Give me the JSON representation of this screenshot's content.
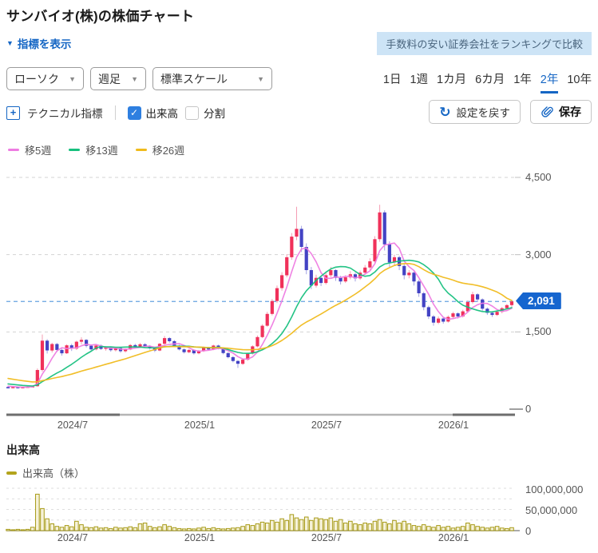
{
  "page": {
    "title": "サンバイオ(株)の株価チャート"
  },
  "toolbar": {
    "indicator_toggle": "指標を表示",
    "promo_link": "手数料の安い証券会社をランキングで比較",
    "chart_type": "ローソク",
    "interval": "週足",
    "scale": "標準スケール",
    "periods": [
      "1日",
      "1週",
      "1カ月",
      "6カ月",
      "1年",
      "2年",
      "10年"
    ],
    "active_period": "2年",
    "technical": "テクニカル指標",
    "volume_checkbox": "出来高",
    "split_checkbox": "分割",
    "check_glyph": "✓",
    "reset_button": "設定を戻す",
    "save_button": "保存",
    "caret_glyph": "▼",
    "plus_glyph": "+",
    "refresh_glyph": "↻"
  },
  "legend": {
    "ma": [
      {
        "label": "移5週",
        "color": "#ee7ce2"
      },
      {
        "label": "移13週",
        "color": "#17c07e"
      },
      {
        "label": "移26週",
        "color": "#f0bb1c"
      }
    ]
  },
  "colors": {
    "accent_blue": "#1566c4",
    "up_body": "#f0315a",
    "up_wick": "#f59cb2",
    "down_body": "#4343c4",
    "down_wick": "#a3a3e4",
    "price_line": "#66a3e0",
    "price_badge_bg": "#1565cf",
    "grid": "#d3d3d3",
    "vol_fill": "#f6f2da",
    "vol_stroke": "#a79a16"
  },
  "price_axis_labels": [
    "4,500",
    "3,000",
    "1,500",
    "0"
  ],
  "current_price_label": "2,091",
  "volume_section": {
    "heading": "出来高",
    "legend": "出来高（株）",
    "legend_color": "#b3a41c",
    "axis_labels": [
      "100,000,000",
      "50,000,000",
      "0"
    ]
  },
  "chart_data": {
    "type": "candlestick+volume",
    "title": "サンバイオ(株) 週足 2年",
    "x_labels": [
      "2024/7",
      "2025/1",
      "2025/7",
      "2026/1"
    ],
    "x_tick_weeks": [
      13,
      39,
      65,
      91
    ],
    "ylim": [
      0,
      4690
    ],
    "y_gridlines": [
      4500,
      3000,
      1500
    ],
    "current_price": 2091,
    "ma_periods": [
      5,
      13,
      26
    ],
    "ma_seed_closes": [
      840,
      820,
      800,
      780,
      760,
      740,
      720,
      700,
      680,
      660,
      640,
      620,
      600,
      585,
      570,
      555,
      540,
      525,
      510,
      495,
      485,
      475,
      465,
      455,
      445,
      435
    ],
    "ohlc": [
      [
        430,
        445,
        405,
        425
      ],
      [
        425,
        440,
        412,
        432
      ],
      [
        432,
        438,
        402,
        418
      ],
      [
        418,
        436,
        408,
        430
      ],
      [
        430,
        448,
        420,
        438
      ],
      [
        438,
        455,
        425,
        445
      ],
      [
        445,
        790,
        438,
        760
      ],
      [
        760,
        1450,
        730,
        1330
      ],
      [
        1330,
        1360,
        1080,
        1140
      ],
      [
        1140,
        1290,
        1100,
        1265
      ],
      [
        1265,
        1285,
        1110,
        1150
      ],
      [
        1150,
        1175,
        1040,
        1085
      ],
      [
        1085,
        1260,
        1070,
        1240
      ],
      [
        1240,
        1270,
        1130,
        1175
      ],
      [
        1175,
        1330,
        1150,
        1310
      ],
      [
        1310,
        1395,
        1260,
        1345
      ],
      [
        1345,
        1360,
        1200,
        1230
      ],
      [
        1230,
        1255,
        1125,
        1160
      ],
      [
        1160,
        1250,
        1140,
        1235
      ],
      [
        1235,
        1255,
        1150,
        1170
      ],
      [
        1170,
        1225,
        1135,
        1200
      ],
      [
        1200,
        1215,
        1115,
        1145
      ],
      [
        1145,
        1205,
        1120,
        1185
      ],
      [
        1185,
        1200,
        1095,
        1125
      ],
      [
        1125,
        1180,
        1100,
        1160
      ],
      [
        1160,
        1265,
        1145,
        1245
      ],
      [
        1245,
        1270,
        1180,
        1210
      ],
      [
        1210,
        1285,
        1190,
        1260
      ],
      [
        1260,
        1280,
        1195,
        1225
      ],
      [
        1225,
        1245,
        1155,
        1180
      ],
      [
        1180,
        1200,
        1110,
        1140
      ],
      [
        1140,
        1285,
        1125,
        1270
      ],
      [
        1270,
        1420,
        1255,
        1380
      ],
      [
        1380,
        1400,
        1290,
        1320
      ],
      [
        1320,
        1340,
        1205,
        1230
      ],
      [
        1230,
        1250,
        1140,
        1160
      ],
      [
        1160,
        1180,
        1080,
        1105
      ],
      [
        1105,
        1165,
        1085,
        1150
      ],
      [
        1150,
        1160,
        1060,
        1085
      ],
      [
        1085,
        1150,
        1065,
        1130
      ],
      [
        1130,
        1215,
        1110,
        1195
      ],
      [
        1195,
        1210,
        1135,
        1160
      ],
      [
        1160,
        1250,
        1145,
        1235
      ],
      [
        1235,
        1250,
        1160,
        1180
      ],
      [
        1180,
        1195,
        1065,
        1090
      ],
      [
        1090,
        1105,
        985,
        1010
      ],
      [
        1010,
        1030,
        910,
        935
      ],
      [
        935,
        950,
        800,
        880
      ],
      [
        880,
        985,
        860,
        960
      ],
      [
        960,
        1095,
        940,
        1080
      ],
      [
        1080,
        1240,
        1060,
        1220
      ],
      [
        1220,
        1430,
        1200,
        1400
      ],
      [
        1400,
        1650,
        1380,
        1620
      ],
      [
        1620,
        1890,
        1600,
        1850
      ],
      [
        1850,
        2140,
        1820,
        2100
      ],
      [
        2100,
        2400,
        2060,
        2350
      ],
      [
        2350,
        2660,
        2300,
        2600
      ],
      [
        2600,
        3010,
        2560,
        2950
      ],
      [
        2950,
        3420,
        2900,
        3350
      ],
      [
        3350,
        3930,
        3280,
        3500
      ],
      [
        3500,
        3560,
        3050,
        3150
      ],
      [
        3150,
        3220,
        2620,
        2700
      ],
      [
        2700,
        2760,
        2330,
        2400
      ],
      [
        2400,
        2610,
        2360,
        2550
      ],
      [
        2550,
        2580,
        2390,
        2450
      ],
      [
        2450,
        2650,
        2420,
        2600
      ],
      [
        2600,
        2760,
        2560,
        2700
      ],
      [
        2700,
        2720,
        2490,
        2550
      ],
      [
        2550,
        2590,
        2420,
        2480
      ],
      [
        2480,
        2600,
        2450,
        2560
      ],
      [
        2560,
        2680,
        2520,
        2620
      ],
      [
        2620,
        2650,
        2480,
        2540
      ],
      [
        2540,
        2690,
        2510,
        2650
      ],
      [
        2650,
        2800,
        2610,
        2750
      ],
      [
        2750,
        2930,
        2700,
        2870
      ],
      [
        2870,
        3360,
        2840,
        3300
      ],
      [
        3300,
        3970,
        3250,
        3820
      ],
      [
        3820,
        3860,
        3080,
        3200
      ],
      [
        3200,
        3260,
        2760,
        2850
      ],
      [
        2850,
        3000,
        2790,
        2950
      ],
      [
        2950,
        2980,
        2700,
        2780
      ],
      [
        2780,
        2820,
        2520,
        2600
      ],
      [
        2600,
        2700,
        2540,
        2650
      ],
      [
        2650,
        2670,
        2400,
        2480
      ],
      [
        2480,
        2510,
        2180,
        2250
      ],
      [
        2250,
        2280,
        1920,
        1980
      ],
      [
        1980,
        2010,
        1750,
        1800
      ],
      [
        1800,
        1830,
        1620,
        1680
      ],
      [
        1680,
        1800,
        1650,
        1760
      ],
      [
        1760,
        1780,
        1660,
        1700
      ],
      [
        1700,
        1820,
        1680,
        1790
      ],
      [
        1790,
        1890,
        1760,
        1860
      ],
      [
        1860,
        1880,
        1760,
        1800
      ],
      [
        1800,
        1930,
        1780,
        1900
      ],
      [
        1900,
        2110,
        1880,
        2080
      ],
      [
        2080,
        2280,
        2050,
        2230
      ],
      [
        2230,
        2250,
        2080,
        2130
      ],
      [
        2130,
        2150,
        1910,
        1950
      ],
      [
        1950,
        1975,
        1830,
        1870
      ],
      [
        1870,
        1895,
        1790,
        1830
      ],
      [
        1830,
        1915,
        1810,
        1890
      ],
      [
        1890,
        1985,
        1860,
        1960
      ],
      [
        1960,
        2040,
        1930,
        2020
      ],
      [
        2020,
        2110,
        1985,
        2091
      ]
    ],
    "volumes_m": [
      3,
      2,
      3,
      2,
      3,
      8,
      86,
      52,
      28,
      16,
      10,
      8,
      12,
      9,
      22,
      14,
      8,
      7,
      9,
      6,
      7,
      5,
      8,
      6,
      7,
      9,
      7,
      16,
      18,
      10,
      7,
      9,
      14,
      10,
      7,
      5,
      4,
      5,
      4,
      6,
      8,
      5,
      7,
      5,
      4,
      5,
      6,
      7,
      10,
      14,
      12,
      16,
      20,
      18,
      24,
      20,
      28,
      24,
      38,
      30,
      26,
      32,
      24,
      30,
      28,
      26,
      30,
      22,
      26,
      18,
      22,
      16,
      14,
      18,
      16,
      22,
      26,
      20,
      16,
      24,
      18,
      22,
      16,
      12,
      10,
      14,
      10,
      8,
      12,
      8,
      10,
      6,
      8,
      10,
      18,
      14,
      10,
      8,
      6,
      8,
      10,
      6,
      5,
      7
    ],
    "volume_gridlines_m": [
      100,
      75,
      50,
      25
    ],
    "volume_ylim_m": [
      0,
      125
    ],
    "legend_position": "top-left",
    "grid": true
  }
}
